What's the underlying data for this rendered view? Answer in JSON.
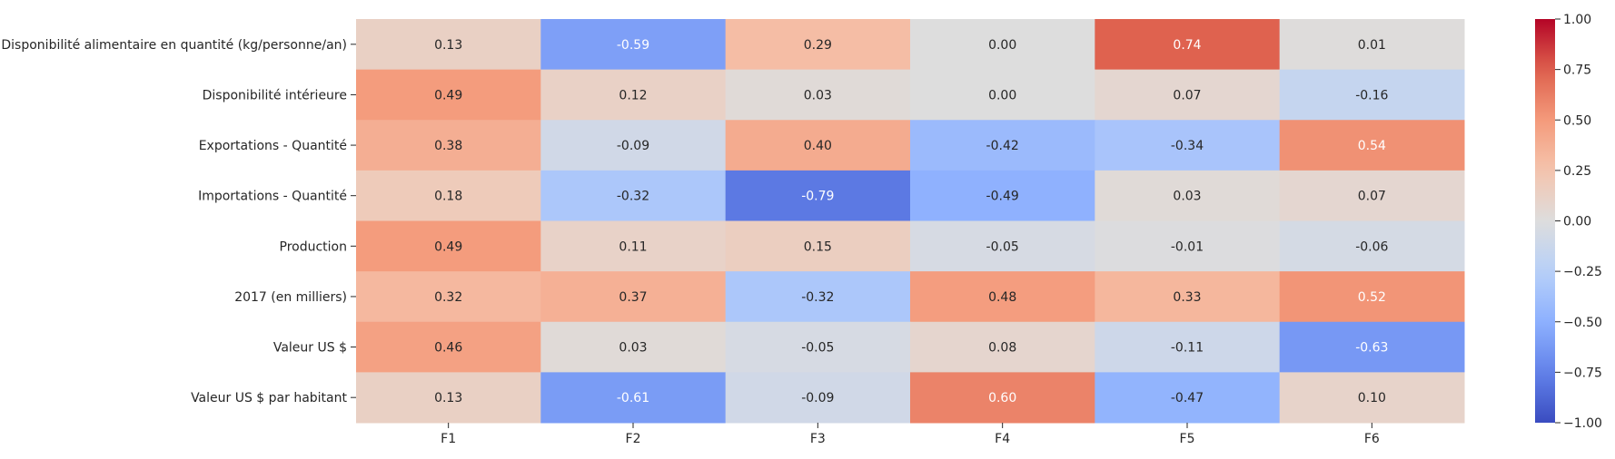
{
  "chart_data": {
    "type": "heatmap",
    "title": "",
    "xlabel": "",
    "ylabel": "",
    "colormap": "coolwarm",
    "vmin": -1.0,
    "vmax": 1.0,
    "x_categories": [
      "F1",
      "F2",
      "F3",
      "F4",
      "F5",
      "F6"
    ],
    "y_categories": [
      "Disponibilité alimentaire en quantité (kg/personne/an)",
      "Disponibilité intérieure",
      "Exportations - Quantité",
      "Importations - Quantité",
      "Production",
      "2017 (en milliers)",
      "Valeur US $",
      "Valeur US $ par habitant"
    ],
    "values": [
      [
        0.13,
        -0.59,
        0.29,
        0.0,
        0.74,
        0.01
      ],
      [
        0.49,
        0.12,
        0.03,
        0.0,
        0.07,
        -0.16
      ],
      [
        0.38,
        -0.09,
        0.4,
        -0.42,
        -0.34,
        0.54
      ],
      [
        0.18,
        -0.32,
        -0.79,
        -0.49,
        0.03,
        0.07
      ],
      [
        0.49,
        0.11,
        0.15,
        -0.05,
        -0.01,
        -0.06
      ],
      [
        0.32,
        0.37,
        -0.32,
        0.48,
        0.33,
        0.52
      ],
      [
        0.46,
        0.03,
        -0.05,
        0.08,
        -0.11,
        -0.63
      ],
      [
        0.13,
        -0.61,
        -0.09,
        0.6,
        -0.47,
        0.1
      ]
    ],
    "colorbar": {
      "ticks": [
        1.0,
        0.75,
        0.5,
        0.25,
        0.0,
        -0.25,
        -0.5,
        -0.75,
        -1.0
      ],
      "tick_labels": [
        "1.00",
        "0.75",
        "0.50",
        "0.25",
        "0.00",
        "−0.25",
        "−0.50",
        "−0.75",
        "−1.00"
      ]
    },
    "grid": false,
    "legend": "colorbar-right"
  }
}
